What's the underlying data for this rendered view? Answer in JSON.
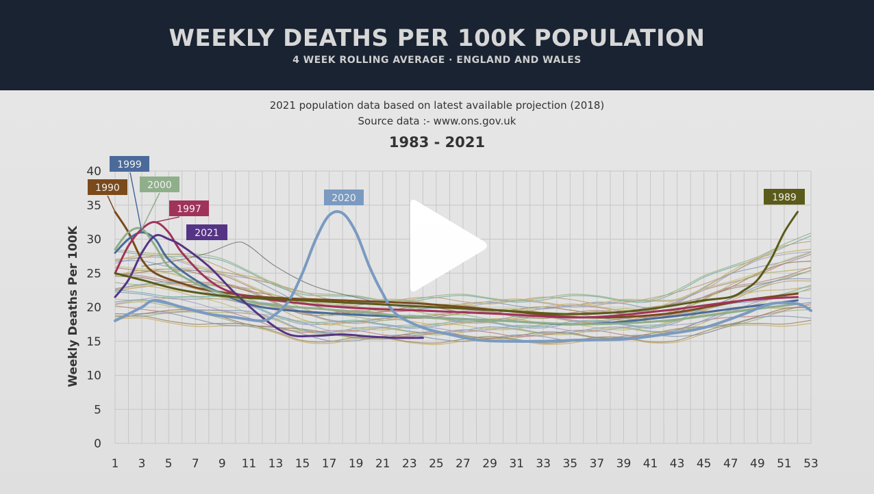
{
  "header": {
    "title": "WEEKLY DEATHS PER 100K POPULATION",
    "subtitle": "4 WEEK ROLLING AVERAGE · ENGLAND AND WALES"
  },
  "notes": {
    "line1": "2021 population data based on latest available projection (2018)",
    "line2": "Source data :- www.ons.gov.uk"
  },
  "range_label": "1983 - 2021",
  "player": {
    "icon": "play-icon"
  },
  "chart_data": {
    "type": "line",
    "ylabel": "Weekly Deaths Per 100K",
    "ylim": [
      0,
      40
    ],
    "yticks": [
      0,
      5,
      10,
      15,
      20,
      25,
      30,
      35,
      40
    ],
    "xlim": [
      1,
      53
    ],
    "xticks": [
      1,
      3,
      5,
      7,
      9,
      11,
      13,
      15,
      17,
      19,
      21,
      23,
      25,
      27,
      29,
      31,
      33,
      35,
      37,
      39,
      41,
      43,
      45,
      47,
      49,
      51,
      53
    ],
    "grid": true,
    "labelled_series": [
      {
        "name": "1990",
        "color": "#7a4a1c",
        "points": [
          [
            1,
            34
          ],
          [
            2,
            31
          ],
          [
            3,
            27
          ],
          [
            4,
            25
          ],
          [
            6,
            23.5
          ],
          [
            8,
            22.5
          ],
          [
            12,
            21.5
          ],
          [
            18,
            21
          ],
          [
            24,
            20.5
          ],
          [
            30,
            19.5
          ],
          [
            36,
            18.5
          ],
          [
            42,
            19
          ],
          [
            48,
            21
          ],
          [
            52,
            22
          ]
        ]
      },
      {
        "name": "1999",
        "color": "#4a6a9a",
        "points": [
          [
            1,
            28
          ],
          [
            2,
            30
          ],
          [
            3,
            31
          ],
          [
            4,
            30
          ],
          [
            5,
            27
          ],
          [
            7,
            24
          ],
          [
            9,
            22
          ],
          [
            12,
            20
          ],
          [
            18,
            19
          ],
          [
            24,
            18.5
          ],
          [
            30,
            18
          ],
          [
            36,
            17.5
          ],
          [
            42,
            18.5
          ],
          [
            48,
            20
          ],
          [
            52,
            21
          ]
        ]
      },
      {
        "name": "2000",
        "color": "#8fae8a",
        "points": [
          [
            1,
            28.5
          ],
          [
            2,
            31
          ],
          [
            3,
            31.5
          ],
          [
            4,
            29
          ],
          [
            5,
            26
          ],
          [
            7,
            23.5
          ],
          [
            9,
            22
          ],
          [
            12,
            20.5
          ],
          [
            18,
            19.5
          ],
          [
            24,
            18.5
          ],
          [
            30,
            18
          ],
          [
            36,
            17.5
          ],
          [
            42,
            18
          ],
          [
            48,
            19.5
          ],
          [
            52,
            20.5
          ]
        ]
      },
      {
        "name": "1997",
        "color": "#a0335a",
        "points": [
          [
            1,
            25
          ],
          [
            2,
            29
          ],
          [
            3,
            31.5
          ],
          [
            4,
            32.5
          ],
          [
            5,
            31
          ],
          [
            6,
            28
          ],
          [
            8,
            24
          ],
          [
            10,
            22
          ],
          [
            13,
            21
          ],
          [
            18,
            20
          ],
          [
            24,
            19.5
          ],
          [
            30,
            19
          ],
          [
            36,
            18.5
          ],
          [
            42,
            19.5
          ],
          [
            48,
            21
          ],
          [
            52,
            21.5
          ]
        ]
      },
      {
        "name": "2021",
        "color": "#553385",
        "points": [
          [
            1,
            21.5
          ],
          [
            2,
            24
          ],
          [
            3,
            28
          ],
          [
            4,
            30.5
          ],
          [
            5,
            30
          ],
          [
            6,
            29
          ],
          [
            8,
            26
          ],
          [
            10,
            22
          ],
          [
            12,
            18.5
          ],
          [
            14,
            16
          ],
          [
            16,
            15.8
          ],
          [
            18,
            16
          ],
          [
            20,
            15.7
          ],
          [
            22,
            15.5
          ],
          [
            24,
            15.5
          ]
        ]
      },
      {
        "name": "2020",
        "color": "#7a9ac0",
        "points": [
          [
            1,
            18
          ],
          [
            2,
            19
          ],
          [
            3,
            20
          ],
          [
            4,
            21
          ],
          [
            6,
            20
          ],
          [
            8,
            19
          ],
          [
            10,
            18.5
          ],
          [
            12,
            18
          ],
          [
            13,
            19
          ],
          [
            14,
            21
          ],
          [
            15,
            25
          ],
          [
            16,
            30
          ],
          [
            17,
            33.5
          ],
          [
            18,
            33.8
          ],
          [
            19,
            31
          ],
          [
            20,
            26
          ],
          [
            21,
            22
          ],
          [
            22,
            19
          ],
          [
            24,
            17
          ],
          [
            26,
            16
          ],
          [
            28,
            15.2
          ],
          [
            30,
            15
          ],
          [
            33,
            15
          ],
          [
            36,
            15.2
          ],
          [
            39,
            15.3
          ],
          [
            42,
            16
          ],
          [
            45,
            17
          ],
          [
            48,
            19
          ],
          [
            50,
            20.5
          ],
          [
            52,
            20.5
          ],
          [
            53,
            19.5
          ]
        ]
      },
      {
        "name": "1989",
        "color": "#5a5a1a",
        "points": [
          [
            1,
            25
          ],
          [
            3,
            24
          ],
          [
            6,
            22.5
          ],
          [
            10,
            21.5
          ],
          [
            15,
            21
          ],
          [
            20,
            20.5
          ],
          [
            25,
            20
          ],
          [
            30,
            19.5
          ],
          [
            35,
            19
          ],
          [
            40,
            19.5
          ],
          [
            45,
            21
          ],
          [
            47,
            21.5
          ],
          [
            48,
            22.5
          ],
          [
            49,
            24
          ],
          [
            50,
            27
          ],
          [
            51,
            31
          ],
          [
            52,
            34
          ]
        ]
      }
    ]
  }
}
